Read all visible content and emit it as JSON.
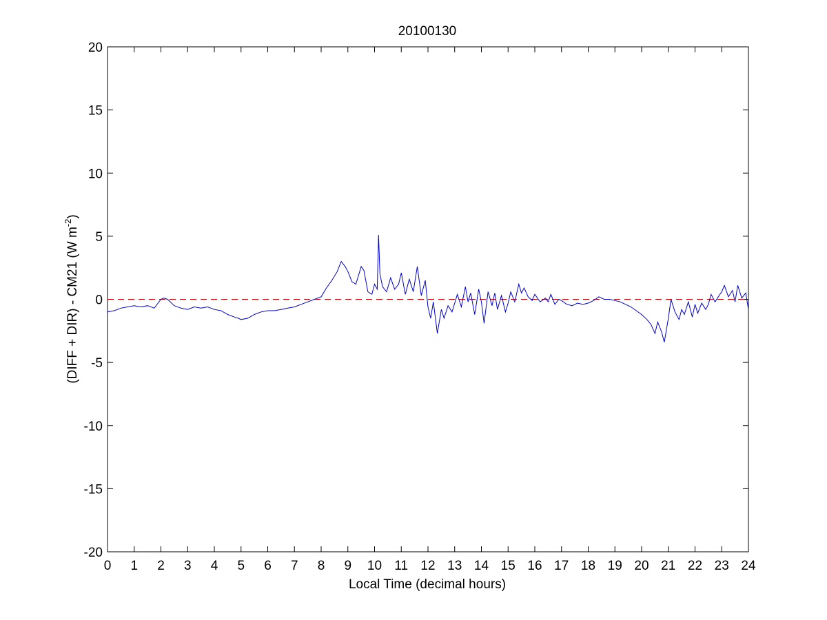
{
  "chart_data": {
    "type": "line",
    "title": "20100130",
    "xlabel": "Local Time (decimal hours)",
    "ylabel": {
      "main": "(DIFF + DIR) - CM21 (W m",
      "superscript": "-2",
      "close": ")"
    },
    "xlim": [
      0,
      24
    ],
    "ylim": [
      -20,
      20
    ],
    "xticks": [
      0,
      1,
      2,
      3,
      4,
      5,
      6,
      7,
      8,
      9,
      10,
      11,
      12,
      13,
      14,
      15,
      16,
      17,
      18,
      19,
      20,
      21,
      22,
      23,
      24
    ],
    "yticks": [
      -20,
      -15,
      -10,
      -5,
      0,
      5,
      10,
      15,
      20
    ],
    "grid": false,
    "reference_line": {
      "y": 0,
      "style": "dashed",
      "color": "#cc0000"
    },
    "series": [
      {
        "color": "#0000cc",
        "x": [
          0.0,
          0.25,
          0.5,
          0.75,
          1.0,
          1.25,
          1.5,
          1.75,
          2.0,
          2.1,
          2.25,
          2.5,
          2.75,
          3.0,
          3.25,
          3.5,
          3.75,
          4.0,
          4.25,
          4.5,
          4.75,
          4.9,
          5.0,
          5.25,
          5.5,
          5.75,
          6.0,
          6.25,
          6.5,
          6.75,
          7.0,
          7.25,
          7.5,
          7.75,
          8.0,
          8.2,
          8.4,
          8.6,
          8.75,
          8.9,
          9.0,
          9.15,
          9.3,
          9.5,
          9.6,
          9.75,
          9.9,
          10.0,
          10.1,
          10.15,
          10.2,
          10.3,
          10.45,
          10.6,
          10.75,
          10.9,
          11.0,
          11.15,
          11.3,
          11.45,
          11.6,
          11.75,
          11.9,
          12.0,
          12.1,
          12.2,
          12.35,
          12.5,
          12.6,
          12.75,
          12.9,
          13.0,
          13.1,
          13.25,
          13.4,
          13.5,
          13.6,
          13.75,
          13.9,
          14.0,
          14.1,
          14.25,
          14.4,
          14.5,
          14.6,
          14.75,
          14.9,
          15.0,
          15.1,
          15.25,
          15.4,
          15.5,
          15.6,
          15.75,
          15.9,
          16.0,
          16.2,
          16.4,
          16.5,
          16.6,
          16.75,
          16.9,
          17.0,
          17.2,
          17.4,
          17.6,
          17.8,
          18.0,
          18.2,
          18.4,
          18.6,
          18.8,
          19.0,
          19.2,
          19.4,
          19.6,
          19.8,
          20.0,
          20.2,
          20.35,
          20.5,
          20.6,
          20.75,
          20.85,
          21.0,
          21.1,
          21.25,
          21.4,
          21.5,
          21.6,
          21.75,
          21.9,
          22.0,
          22.1,
          22.25,
          22.4,
          22.5,
          22.6,
          22.75,
          22.9,
          23.0,
          23.1,
          23.25,
          23.4,
          23.5,
          23.6,
          23.75,
          23.9,
          24.0
        ],
        "y": [
          -1.0,
          -0.9,
          -0.7,
          -0.6,
          -0.5,
          -0.6,
          -0.5,
          -0.7,
          0.0,
          0.1,
          0.0,
          -0.5,
          -0.7,
          -0.8,
          -0.6,
          -0.7,
          -0.6,
          -0.8,
          -0.9,
          -1.2,
          -1.4,
          -1.5,
          -1.6,
          -1.5,
          -1.2,
          -1.0,
          -0.9,
          -0.9,
          -0.8,
          -0.7,
          -0.6,
          -0.4,
          -0.2,
          0.0,
          0.2,
          0.9,
          1.5,
          2.2,
          3.0,
          2.6,
          2.2,
          1.4,
          1.2,
          2.6,
          2.3,
          0.6,
          0.4,
          1.2,
          0.8,
          5.1,
          2.0,
          1.0,
          0.6,
          1.7,
          0.8,
          1.2,
          2.1,
          0.4,
          1.6,
          0.6,
          2.6,
          0.3,
          1.5,
          -0.6,
          -1.5,
          -0.2,
          -2.7,
          -0.8,
          -1.5,
          -0.5,
          -1.0,
          -0.3,
          0.4,
          -0.6,
          1.0,
          -0.2,
          0.5,
          -1.2,
          0.8,
          -0.2,
          -1.9,
          0.6,
          -0.5,
          0.5,
          -0.8,
          0.3,
          -1.0,
          -0.3,
          0.6,
          -0.2,
          1.2,
          0.5,
          0.9,
          0.2,
          -0.1,
          0.4,
          -0.2,
          0.1,
          -0.2,
          0.4,
          -0.4,
          0.0,
          -0.1,
          -0.4,
          -0.5,
          -0.3,
          -0.4,
          -0.3,
          -0.1,
          0.2,
          0.0,
          0.0,
          -0.1,
          -0.2,
          -0.4,
          -0.6,
          -0.9,
          -1.2,
          -1.6,
          -2.0,
          -2.7,
          -1.8,
          -2.6,
          -3.4,
          -1.5,
          0.0,
          -1.0,
          -1.6,
          -0.8,
          -1.2,
          -0.2,
          -1.4,
          -0.4,
          -1.1,
          -0.3,
          -0.8,
          -0.4,
          0.4,
          -0.2,
          0.3,
          0.6,
          1.1,
          0.2,
          0.7,
          -0.2,
          1.1,
          0.1,
          0.5,
          -0.8
        ]
      }
    ]
  }
}
